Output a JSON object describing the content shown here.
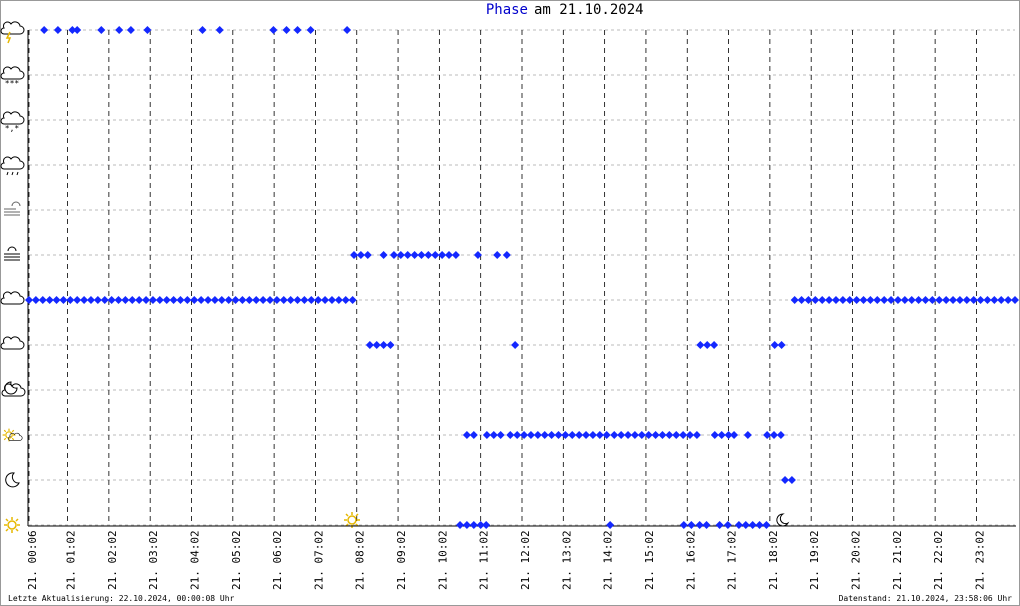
{
  "chart_data": {
    "type": "scatter",
    "title": {
      "series": "Phase",
      "date": "am 21.10.2024"
    },
    "footer": {
      "updated": "Letzte Aktualisierung: 22.10.2024, 00:00:08 Uhr",
      "datestamp": "Datenstand: 21.10.2024, 23:58:06 Uhr"
    },
    "color": "#1428ff",
    "grid": true,
    "xlim": [
      6,
      1438
    ],
    "xticks": [
      {
        "value": 6,
        "label": "21. 00:06"
      },
      {
        "value": 62,
        "label": "21. 01:02"
      },
      {
        "value": 122,
        "label": "21. 02:02"
      },
      {
        "value": 182,
        "label": "21. 03:02"
      },
      {
        "value": 242,
        "label": "21. 04:02"
      },
      {
        "value": 302,
        "label": "21. 05:02"
      },
      {
        "value": 362,
        "label": "21. 06:02"
      },
      {
        "value": 422,
        "label": "21. 07:02"
      },
      {
        "value": 482,
        "label": "21. 08:02"
      },
      {
        "value": 542,
        "label": "21. 09:02"
      },
      {
        "value": 602,
        "label": "21. 10:02"
      },
      {
        "value": 662,
        "label": "21. 11:02"
      },
      {
        "value": 722,
        "label": "21. 12:02"
      },
      {
        "value": 782,
        "label": "21. 13:02"
      },
      {
        "value": 842,
        "label": "21. 14:02"
      },
      {
        "value": 902,
        "label": "21. 15:02"
      },
      {
        "value": 962,
        "label": "21. 16:02"
      },
      {
        "value": 1022,
        "label": "21. 17:02"
      },
      {
        "value": 1082,
        "label": "21. 18:02"
      },
      {
        "value": 1142,
        "label": "21. 19:02"
      },
      {
        "value": 1202,
        "label": "21. 20:02"
      },
      {
        "value": 1262,
        "label": "21. 21:02"
      },
      {
        "value": 1322,
        "label": "21. 22:02"
      },
      {
        "value": 1382,
        "label": "21. 23:02"
      }
    ],
    "ylim": [
      0,
      11
    ],
    "yticks": [
      0,
      1,
      2,
      3,
      4,
      5,
      6,
      7,
      8,
      9,
      10,
      11
    ],
    "x": [
      6,
      16,
      26,
      36,
      46,
      56,
      66,
      76,
      86,
      96,
      106,
      116,
      126,
      136,
      146,
      156,
      166,
      176,
      186,
      196,
      206,
      216,
      226,
      236,
      246,
      256,
      266,
      276,
      286,
      296,
      306,
      316,
      326,
      336,
      346,
      356,
      366,
      376,
      386,
      396,
      406,
      416,
      426,
      436,
      446,
      456,
      466,
      476,
      1118,
      1128,
      1138,
      1148,
      1158,
      1168,
      1178,
      1188,
      1198,
      1208,
      1218,
      1228,
      1238,
      1248,
      1258,
      1268,
      1278,
      1288,
      1298,
      1308,
      1318,
      1328,
      1338,
      1348,
      1358,
      1368,
      1378,
      1388,
      1398,
      1408,
      1418,
      1428,
      1438,
      478,
      488,
      498,
      521,
      536,
      546,
      556,
      566,
      576,
      586,
      596,
      606,
      616,
      626,
      658,
      686,
      700,
      501,
      511,
      521,
      531,
      712,
      981,
      991,
      1001,
      1089,
      1099,
      642,
      652,
      671,
      681,
      691,
      705,
      715,
      725,
      735,
      745,
      755,
      765,
      775,
      785,
      795,
      805,
      815,
      825,
      835,
      845,
      856,
      866,
      876,
      886,
      896,
      906,
      916,
      926,
      936,
      946,
      956,
      966,
      976,
      1002,
      1012,
      1022,
      1030,
      1050,
      1078,
      1088,
      1098,
      1104,
      1114,
      632,
      642,
      652,
      662,
      670,
      850,
      957,
      968,
      980,
      990,
      1009,
      1021,
      1037,
      1047,
      1057,
      1067,
      1077,
      28,
      48,
      69,
      76,
      111,
      137,
      154,
      178,
      258,
      283,
      361,
      380,
      396,
      415,
      468
    ],
    "values": [
      5,
      5,
      5,
      5,
      5,
      5,
      5,
      5,
      5,
      5,
      5,
      5,
      5,
      5,
      5,
      5,
      5,
      5,
      5,
      5,
      5,
      5,
      5,
      5,
      5,
      5,
      5,
      5,
      5,
      5,
      5,
      5,
      5,
      5,
      5,
      5,
      5,
      5,
      5,
      5,
      5,
      5,
      5,
      5,
      5,
      5,
      5,
      5,
      5,
      5,
      5,
      5,
      5,
      5,
      5,
      5,
      5,
      5,
      5,
      5,
      5,
      5,
      5,
      5,
      5,
      5,
      5,
      5,
      5,
      5,
      5,
      5,
      5,
      5,
      5,
      5,
      5,
      5,
      5,
      5,
      5,
      6,
      6,
      6,
      6,
      6,
      6,
      6,
      6,
      6,
      6,
      6,
      6,
      6,
      6,
      6,
      6,
      6,
      4,
      4,
      4,
      4,
      4,
      4,
      4,
      4,
      4,
      4,
      2,
      2,
      2,
      2,
      2,
      2,
      2,
      2,
      2,
      2,
      2,
      2,
      2,
      2,
      2,
      2,
      2,
      2,
      2,
      2,
      2,
      2,
      2,
      2,
      2,
      2,
      2,
      2,
      2,
      2,
      2,
      2,
      2,
      2,
      2,
      2,
      2,
      2,
      2,
      2,
      2,
      1,
      1,
      0,
      0,
      0,
      0,
      0,
      0,
      0,
      0,
      0,
      0,
      0,
      0,
      0,
      0,
      0,
      0,
      0,
      11,
      11,
      11,
      11,
      11,
      11,
      11,
      11,
      11,
      11,
      11,
      11,
      11,
      11,
      11
    ]
  }
}
